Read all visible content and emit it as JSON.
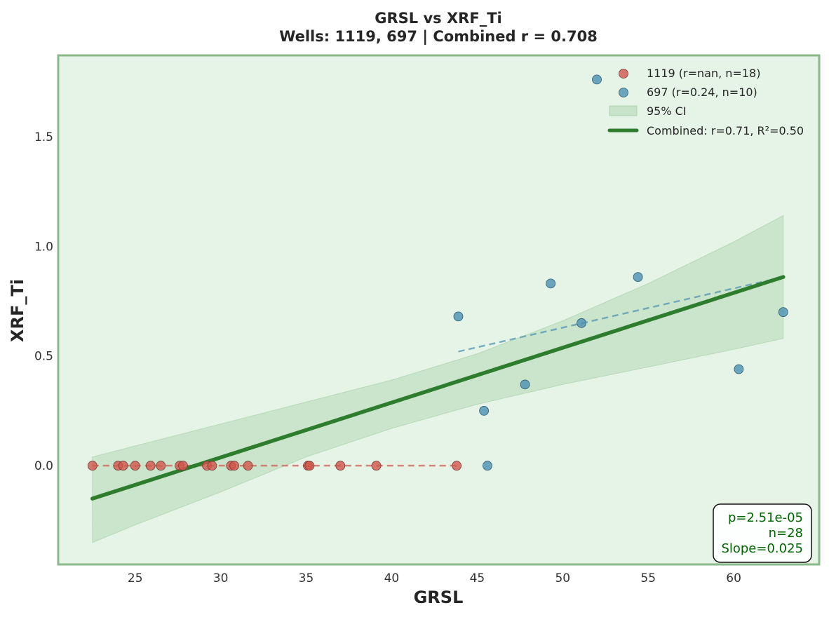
{
  "chart_data": {
    "type": "scatter",
    "title": "GRSL vs XRF_Ti",
    "subtitle": "Wells: 1119, 697 | Combined r = 0.708",
    "xlabel": "GRSL",
    "ylabel": "XRF_Ti",
    "xlim": [
      20.5,
      65
    ],
    "ylim": [
      -0.45,
      1.87
    ],
    "xticks": [
      25,
      30,
      35,
      40,
      45,
      50,
      55,
      60
    ],
    "yticks": [
      0.0,
      0.5,
      1.0,
      1.5
    ],
    "xtick_labels": [
      "25",
      "30",
      "35",
      "40",
      "45",
      "50",
      "55",
      "60"
    ],
    "ytick_labels": [
      "0.0",
      "0.5",
      "1.0",
      "1.5"
    ],
    "grid": false,
    "legend_position": "top-right",
    "background_color": "#e6f4e8",
    "series": [
      {
        "name": "1119 (r=nan, n=18)",
        "color": "#d0564c",
        "points": [
          [
            22.5,
            0
          ],
          [
            24.0,
            0
          ],
          [
            24.3,
            0
          ],
          [
            25.0,
            0
          ],
          [
            25.9,
            0
          ],
          [
            26.5,
            0
          ],
          [
            27.6,
            0
          ],
          [
            27.8,
            0
          ],
          [
            29.2,
            0
          ],
          [
            29.5,
            0
          ],
          [
            30.6,
            0
          ],
          [
            30.8,
            0
          ],
          [
            31.6,
            0
          ],
          [
            35.1,
            0
          ],
          [
            35.2,
            0
          ],
          [
            37.0,
            0
          ],
          [
            39.1,
            0
          ],
          [
            43.8,
            0
          ]
        ],
        "trend": {
          "x": [
            22.5,
            43.8
          ],
          "y": [
            0,
            0
          ],
          "style": "dashed"
        }
      },
      {
        "name": "697 (r=0.24, n=10)",
        "color": "#4a90b0",
        "points": [
          [
            43.9,
            0.68
          ],
          [
            45.4,
            0.25
          ],
          [
            45.6,
            0.0
          ],
          [
            47.8,
            0.37
          ],
          [
            49.3,
            0.83
          ],
          [
            51.1,
            0.65
          ],
          [
            52.0,
            1.76
          ],
          [
            54.4,
            0.86
          ],
          [
            60.3,
            0.44
          ],
          [
            62.9,
            0.7
          ]
        ],
        "trend": {
          "x": [
            43.9,
            62.9
          ],
          "y": [
            0.52,
            0.86
          ],
          "style": "dashed"
        }
      }
    ],
    "combined_fit": {
      "name": "Combined: r=0.71, R²=0.50",
      "color": "#2e7d2e",
      "x": [
        22.5,
        62.9
      ],
      "y": [
        -0.15,
        0.86
      ]
    },
    "confidence_band": {
      "name": "95% CI",
      "color": "#8fc48f",
      "x": [
        22.5,
        25,
        30,
        35,
        40,
        45,
        50,
        55,
        60,
        62.9
      ],
      "upper": [
        0.04,
        0.09,
        0.19,
        0.29,
        0.39,
        0.51,
        0.66,
        0.83,
        1.02,
        1.14
      ],
      "lower": [
        -0.35,
        -0.27,
        -0.12,
        0.04,
        0.17,
        0.28,
        0.37,
        0.45,
        0.53,
        0.58
      ]
    },
    "stats_box": {
      "lines": [
        "p=2.51e-05",
        "n=28",
        "Slope=0.025"
      ],
      "position": "bottom-right",
      "text_color": "#006400"
    }
  }
}
